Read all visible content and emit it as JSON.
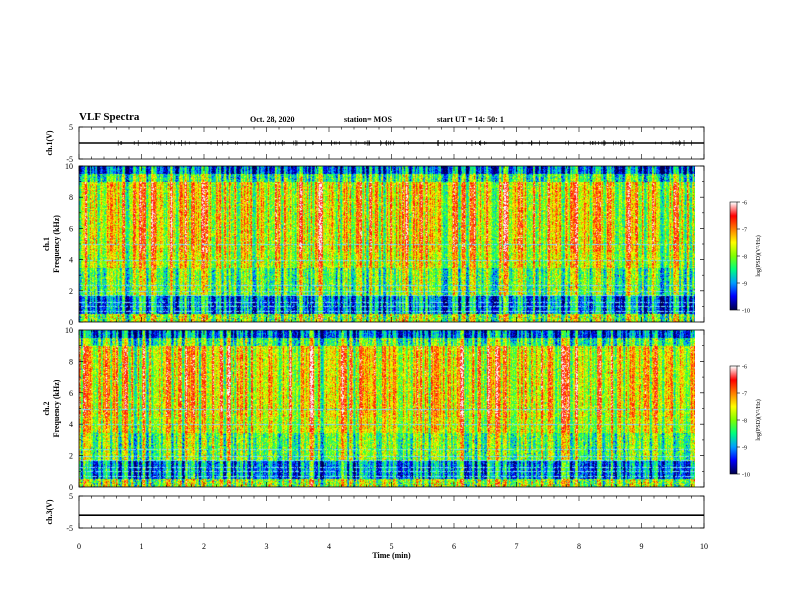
{
  "header": {
    "title": "VLF Spectra",
    "date": "Oct. 28, 2020",
    "station": "station= MOS",
    "start": "start UT =  14: 50: 1"
  },
  "chart_data": [
    {
      "type": "line",
      "panel": "waveform-ch1",
      "ylabel": "ch.1(V)",
      "ylim": [
        -5,
        5
      ],
      "yticks": [
        "5",
        "-5"
      ],
      "x": [
        0,
        10
      ],
      "series": [
        {
          "values": [
            0,
            0
          ]
        }
      ],
      "color": "#000000"
    },
    {
      "type": "heatmap",
      "panel": "spectrogram-ch1",
      "ylabel": "ch.1\nFrequency (kHz)",
      "ylim": [
        0,
        10
      ],
      "yticks": [
        "0",
        "2",
        "4",
        "6",
        "8",
        "10"
      ],
      "xlim": [
        0,
        9.85
      ],
      "colorbar": {
        "label": "log(PSD)(V²/Hz)",
        "ticks": [
          "-6",
          "-7",
          "-8",
          "-9",
          "-10"
        ],
        "range": [
          -10,
          -6
        ]
      }
    },
    {
      "type": "heatmap",
      "panel": "spectrogram-ch2",
      "ylabel": "ch.2\nFrequency (kHz)",
      "ylim": [
        0,
        10
      ],
      "yticks": [
        "0",
        "2",
        "4",
        "6",
        "8",
        "10"
      ],
      "xlim": [
        0,
        9.85
      ],
      "colorbar": {
        "label": "log(PSD)(V²/Hz)",
        "ticks": [
          "-6",
          "-7",
          "-8",
          "-9",
          "-10"
        ],
        "range": [
          -10,
          -6
        ]
      }
    },
    {
      "type": "line",
      "panel": "waveform-ch3",
      "ylabel": "ch.3(V)",
      "ylim": [
        -5,
        5
      ],
      "yticks": [
        "5",
        "-5"
      ],
      "x": [
        0,
        10
      ],
      "series": [
        {
          "values": [
            -1,
            -1
          ]
        }
      ],
      "color": "#000000"
    }
  ],
  "xaxis": {
    "label": "Time (min)",
    "range": [
      0,
      10
    ],
    "ticks": [
      "0",
      "1",
      "2",
      "3",
      "4",
      "5",
      "6",
      "7",
      "8",
      "9",
      "10"
    ]
  },
  "colormap": [
    "#000050",
    "#0000ff",
    "#00a0ff",
    "#00ff80",
    "#80ff00",
    "#ffff00",
    "#ff8000",
    "#ff0000",
    "#ffffff"
  ]
}
